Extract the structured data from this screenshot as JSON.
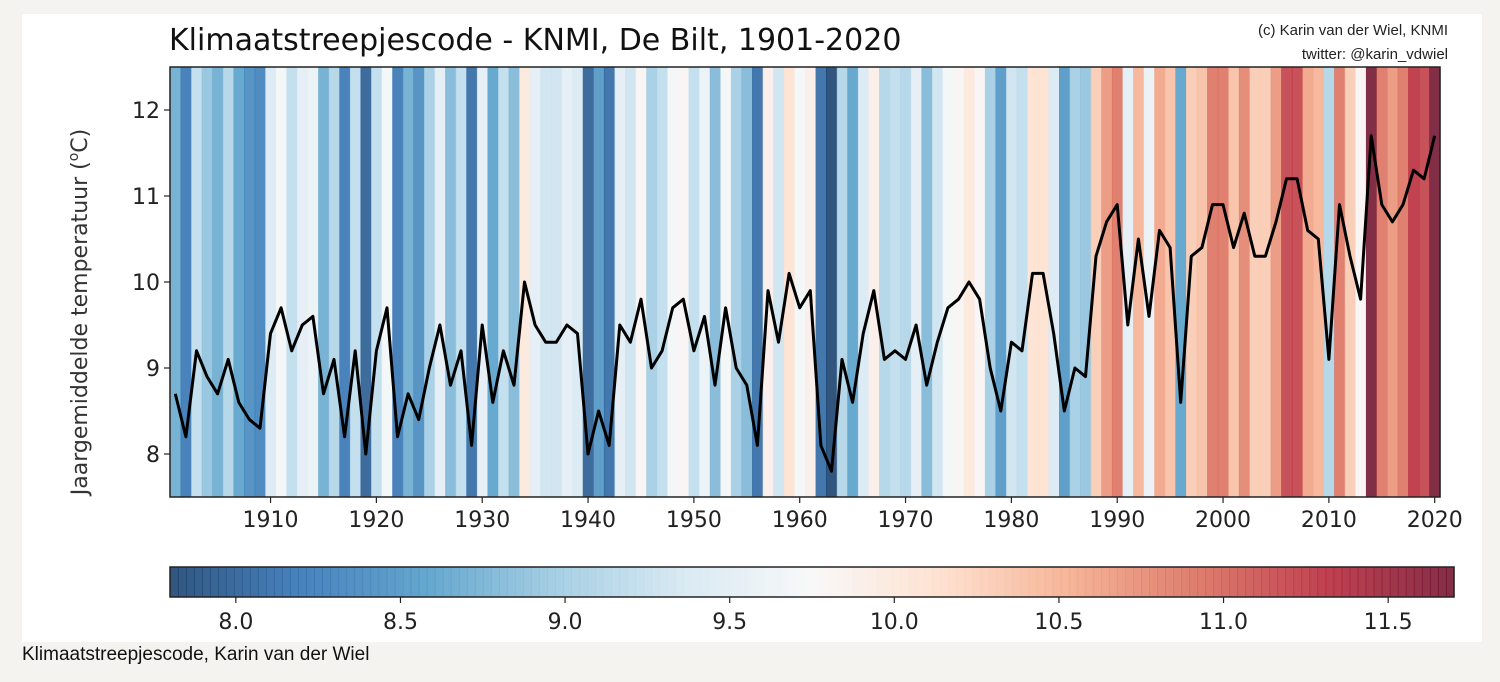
{
  "caption": "Klimaatstreepjescode, Karin van der Wiel",
  "chart_data": {
    "type": "line",
    "title": "Klimaatstreepjescode - KNMI, De Bilt, 1901-2020",
    "credit_line1": "(c) Karin van der Wiel, KNMI",
    "credit_line2": "twitter: @karin_vdwiel",
    "xlabel": "",
    "ylabel": "Jaargemiddelde temperatuur (",
    "ylabel_unit_sup": "o",
    "ylabel_unit": "C)",
    "xlim": [
      1900.5,
      2020.5
    ],
    "ylim": [
      7.5,
      12.5
    ],
    "xticks": [
      1910,
      1920,
      1930,
      1940,
      1950,
      1960,
      1970,
      1980,
      1990,
      2000,
      2010,
      2020
    ],
    "yticks": [
      8,
      9,
      10,
      11,
      12
    ],
    "line_color": "#000000",
    "colorbar": {
      "range": [
        7.8,
        11.7
      ],
      "ticks": [
        "8.0",
        "8.5",
        "9.0",
        "9.5",
        "10.0",
        "10.5",
        "11.0",
        "11.5"
      ],
      "colormap": [
        "#053061",
        "#2166ac",
        "#4393c3",
        "#92c5de",
        "#d1e5f0",
        "#f7f7f7",
        "#fddbc7",
        "#f4a582",
        "#d6604d",
        "#b2182b",
        "#67001f"
      ]
    },
    "series": [
      {
        "x": [
          1901,
          1902,
          1903,
          1904,
          1905,
          1906,
          1907,
          1908,
          1909,
          1910,
          1911,
          1912,
          1913,
          1914,
          1915,
          1916,
          1917,
          1918,
          1919,
          1920,
          1921,
          1922,
          1923,
          1924,
          1925,
          1926,
          1927,
          1928,
          1929,
          1930,
          1931,
          1932,
          1933,
          1934,
          1935,
          1936,
          1937,
          1938,
          1939,
          1940,
          1941,
          1942,
          1943,
          1944,
          1945,
          1946,
          1947,
          1948,
          1949,
          1950,
          1951,
          1952,
          1953,
          1954,
          1955,
          1956,
          1957,
          1958,
          1959,
          1960,
          1961,
          1962,
          1963,
          1964,
          1965,
          1966,
          1967,
          1968,
          1969,
          1970,
          1971,
          1972,
          1973,
          1974,
          1975,
          1976,
          1977,
          1978,
          1979,
          1980,
          1981,
          1982,
          1983,
          1984,
          1985,
          1986,
          1987,
          1988,
          1989,
          1990,
          1991,
          1992,
          1993,
          1994,
          1995,
          1996,
          1997,
          1998,
          1999,
          2000,
          2001,
          2002,
          2003,
          2004,
          2005,
          2006,
          2007,
          2008,
          2009,
          2010,
          2011,
          2012,
          2013,
          2014,
          2015,
          2016,
          2017,
          2018,
          2019,
          2020
        ],
        "y": [
          8.7,
          8.2,
          9.2,
          8.9,
          8.7,
          9.1,
          8.6,
          8.4,
          8.3,
          9.4,
          9.7,
          9.2,
          9.5,
          9.6,
          8.7,
          9.1,
          8.2,
          9.2,
          8.0,
          9.2,
          9.7,
          8.2,
          8.7,
          8.4,
          9.0,
          9.5,
          8.8,
          9.2,
          8.1,
          9.5,
          8.6,
          9.2,
          8.8,
          10.0,
          9.5,
          9.3,
          9.3,
          9.5,
          9.4,
          8.0,
          8.5,
          8.1,
          9.5,
          9.3,
          9.8,
          9.0,
          9.2,
          9.7,
          9.8,
          9.2,
          9.6,
          8.8,
          9.7,
          9.0,
          8.8,
          8.1,
          9.9,
          9.3,
          10.1,
          9.7,
          9.9,
          8.1,
          7.8,
          9.1,
          8.6,
          9.4,
          9.9,
          9.1,
          9.2,
          9.1,
          9.5,
          8.8,
          9.3,
          9.7,
          9.8,
          10.0,
          9.8,
          9.0,
          8.5,
          9.3,
          9.2,
          10.1,
          10.1,
          9.4,
          8.5,
          9.0,
          8.9,
          10.3,
          10.7,
          10.9,
          9.5,
          10.5,
          9.6,
          10.6,
          10.4,
          8.6,
          10.3,
          10.4,
          10.9,
          10.9,
          10.4,
          10.8,
          10.3,
          10.3,
          10.7,
          11.2,
          11.2,
          10.6,
          10.5,
          9.1,
          10.9,
          10.3,
          9.8,
          11.7,
          10.9,
          10.7,
          10.9,
          11.3,
          11.2,
          11.7
        ]
      }
    ]
  }
}
